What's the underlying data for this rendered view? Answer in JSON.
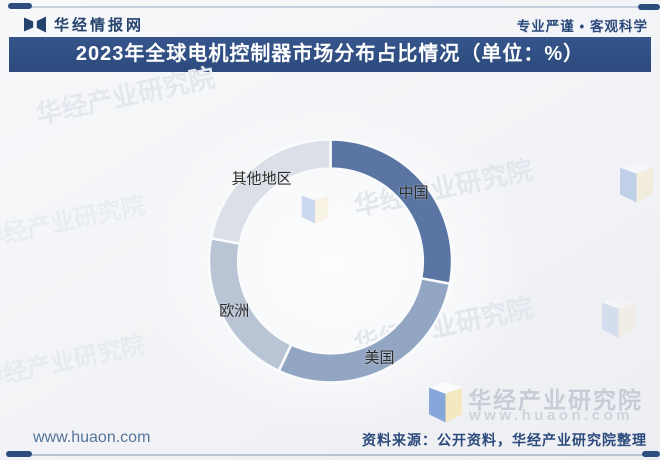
{
  "header": {
    "brand": "华经情报网",
    "slogan": "专业严谨 • 客观科学",
    "title": "2023年全球电机控制器市场分布占比情况（单位：%）"
  },
  "chart_data": {
    "type": "pie",
    "subtype": "donut",
    "title": "2023年全球电机控制器市场分布占比情况",
    "unit": "%",
    "start_angle_deg": 0,
    "direction": "clockwise",
    "inner_radius_ratio": 0.76,
    "labels_shown": "category-names-only",
    "series": [
      {
        "name": "中国",
        "value": 28,
        "color": "#5a75a4"
      },
      {
        "name": "美国",
        "value": 29,
        "color": "#92a5c2"
      },
      {
        "name": "欧洲",
        "value": 21,
        "color": "#b9c4d5"
      },
      {
        "name": "其他地区",
        "value": 22,
        "color": "#dbdfe7"
      }
    ]
  },
  "watermark": {
    "company": "华经产业研究院",
    "url": "www.huaon.com"
  },
  "footer": {
    "site_url": "www.huaon.com",
    "source": "资料来源：公开资料，华经产业研究院整理"
  },
  "colors": {
    "accent_navy": "#2e4d7f",
    "title_bar_bg": "#2f4e80",
    "title_text": "#ffffff",
    "label_text": "#2b2b2b"
  }
}
